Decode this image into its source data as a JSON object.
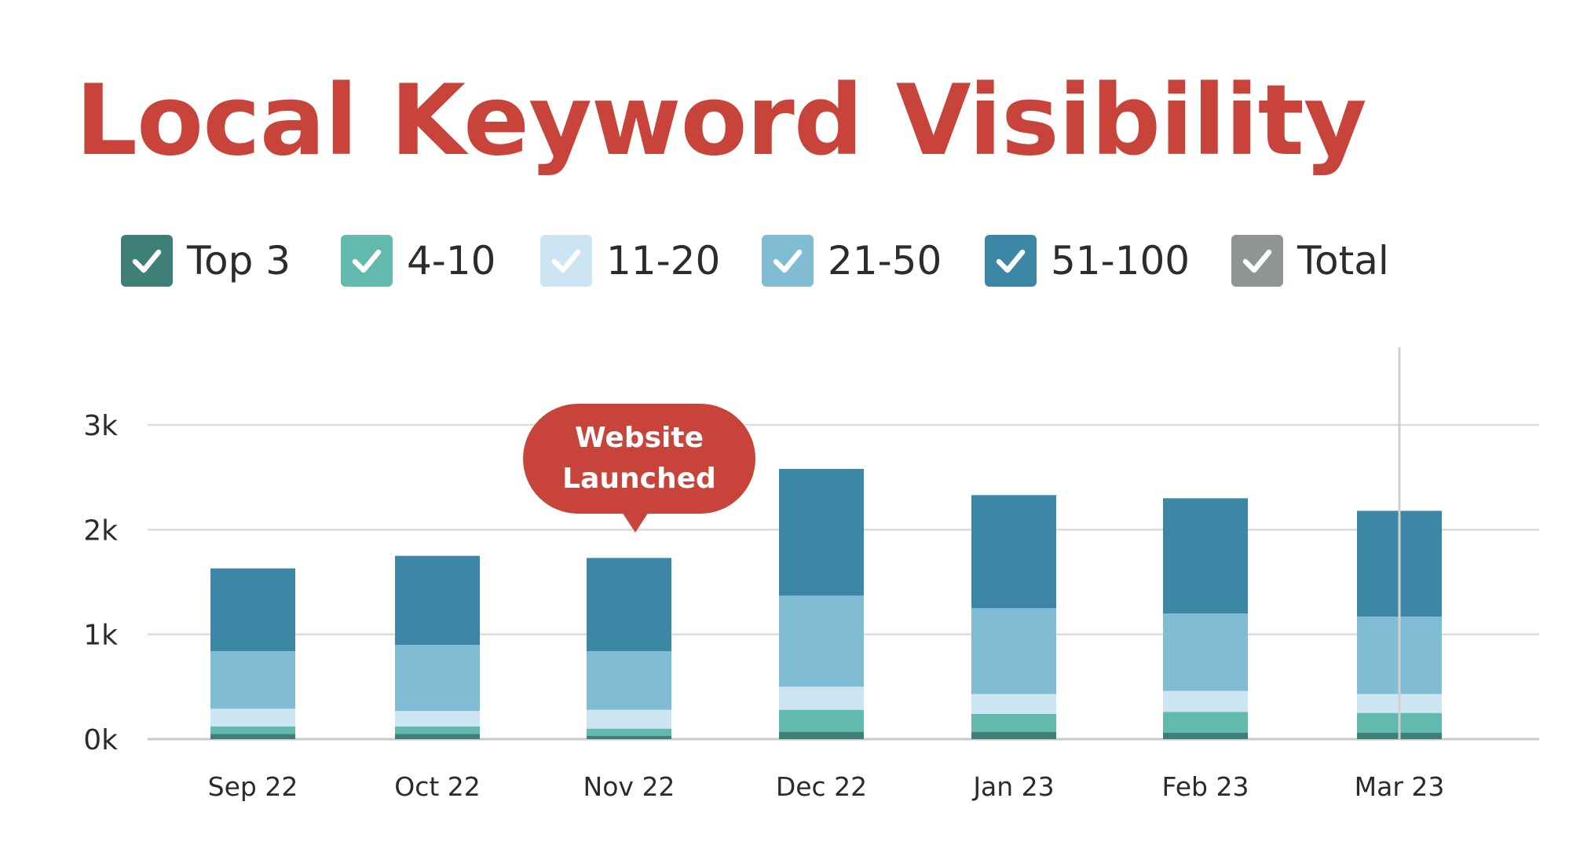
{
  "title": "Local Keyword Visibility",
  "legend": [
    {
      "label": "Top 3",
      "color": "#3e8077"
    },
    {
      "label": "4-10",
      "color": "#62b9ad"
    },
    {
      "label": "11-20",
      "color": "#cde5f2"
    },
    {
      "label": "21-50",
      "color": "#80bdd4"
    },
    {
      "label": "51-100",
      "color": "#3c87a6"
    },
    {
      "label": "Total",
      "color": "#8f9594"
    }
  ],
  "annotation": {
    "text": "Website Launched",
    "category": "Nov 22"
  },
  "chart_data": {
    "type": "bar",
    "stacked": true,
    "categories": [
      "Sep 22",
      "Oct 22",
      "Nov 22",
      "Dec 22",
      "Jan 23",
      "Feb 23",
      "Mar 23"
    ],
    "series": [
      {
        "name": "Top 3",
        "color": "#3e8077",
        "values": [
          50,
          50,
          30,
          70,
          70,
          60,
          60
        ]
      },
      {
        "name": "4-10",
        "color": "#62b9ad",
        "values": [
          70,
          70,
          70,
          210,
          170,
          200,
          190
        ]
      },
      {
        "name": "11-20",
        "color": "#cde5f2",
        "values": [
          170,
          150,
          180,
          220,
          190,
          200,
          180
        ]
      },
      {
        "name": "21-50",
        "color": "#80bdd4",
        "values": [
          550,
          630,
          560,
          870,
          820,
          740,
          740
        ]
      },
      {
        "name": "51-100",
        "color": "#3c87a6",
        "values": [
          790,
          850,
          890,
          1210,
          1080,
          1100,
          1010
        ]
      }
    ],
    "y_ticks": [
      0,
      1000,
      2000,
      3000
    ],
    "y_tick_labels": [
      "0k",
      "1k",
      "2k",
      "3k"
    ],
    "ylim": [
      0,
      3000
    ],
    "grid": true,
    "legend_position": "top",
    "hover_category": "Mar 23"
  }
}
